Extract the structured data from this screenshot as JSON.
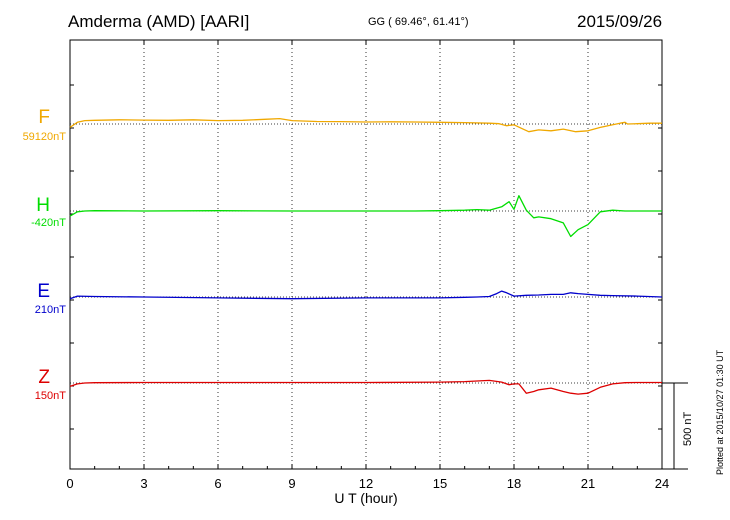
{
  "header": {
    "station": "Amderma (AMD)  [AARI]",
    "coords": "GG ( 69.46°,  61.41°)",
    "date": "2015/09/26"
  },
  "footer": {
    "plotted": "Plotted at 2015/10/27 01:30 UT",
    "scale_label": "500 nT"
  },
  "chart_data": {
    "type": "line",
    "xlabel": "U T (hour)",
    "xlim": [
      0,
      24
    ],
    "xticks": [
      0,
      3,
      6,
      9,
      12,
      15,
      18,
      21,
      24
    ],
    "grid": "dotted vertical every 3 hours, dotted baseline per trace",
    "scale_bar_nT": 500,
    "series": [
      {
        "name": "F",
        "baseline_label": "59120nT",
        "color": "#f0a800",
        "x": [
          0,
          0.3,
          0.6,
          1,
          2,
          3,
          4,
          5,
          6,
          7,
          8,
          8.5,
          9,
          10,
          11,
          12,
          13,
          14,
          15,
          16,
          17,
          17.4,
          17.7,
          18,
          18.3,
          18.6,
          19,
          19.5,
          20,
          20.5,
          21,
          21.5,
          22,
          22.3,
          22.5,
          22.6,
          23,
          23.5,
          24
        ],
        "y": [
          -20,
          10,
          20,
          22,
          25,
          23,
          22,
          25,
          20,
          22,
          28,
          32,
          20,
          15,
          14,
          12,
          13,
          12,
          10,
          8,
          5,
          2,
          -10,
          -5,
          -25,
          -45,
          -35,
          -40,
          -30,
          -45,
          -40,
          -20,
          -5,
          5,
          10,
          0,
          2,
          5,
          5
        ]
      },
      {
        "name": "H",
        "baseline_label": "-420nT",
        "color": "#00dd00",
        "x": [
          0,
          0.3,
          0.6,
          1,
          3,
          6,
          9,
          12,
          14,
          15,
          16,
          16.5,
          17,
          17.5,
          17.8,
          18,
          18.2,
          18.5,
          18.8,
          19,
          19.5,
          20,
          20.3,
          20.6,
          21,
          21.5,
          22,
          22.5,
          23,
          24
        ],
        "y": [
          -30,
          -5,
          0,
          2,
          0,
          2,
          0,
          0,
          0,
          2,
          5,
          8,
          5,
          25,
          55,
          10,
          90,
          5,
          -40,
          -35,
          -45,
          -70,
          -150,
          -110,
          -80,
          -5,
          5,
          0,
          0,
          0
        ]
      },
      {
        "name": "E",
        "baseline_label": "210nT",
        "color": "#0000cc",
        "x": [
          0,
          0.3,
          1,
          3,
          6,
          9,
          12,
          15,
          16,
          16.5,
          17,
          17.3,
          17.5,
          17.7,
          18,
          18.5,
          19,
          19.5,
          20,
          20.3,
          20.6,
          21,
          21.5,
          22,
          23,
          24
        ],
        "y": [
          -10,
          5,
          3,
          0,
          -5,
          -10,
          -5,
          -5,
          -2,
          0,
          3,
          20,
          35,
          25,
          5,
          10,
          12,
          15,
          15,
          25,
          20,
          15,
          10,
          8,
          5,
          0
        ]
      },
      {
        "name": "Z",
        "baseline_label": "150nT",
        "color": "#dd0000",
        "x": [
          0,
          0.3,
          0.6,
          1,
          3,
          6,
          9,
          12,
          15,
          16,
          16.5,
          17,
          17.5,
          17.8,
          18,
          18.2,
          18.5,
          18.8,
          19,
          19.5,
          20,
          20.3,
          20.6,
          21,
          21.5,
          22,
          22.5,
          23,
          24
        ],
        "y": [
          -20,
          -5,
          0,
          2,
          3,
          3,
          3,
          3,
          5,
          8,
          12,
          15,
          5,
          -10,
          -5,
          -5,
          -60,
          -50,
          -40,
          -30,
          -50,
          -60,
          -65,
          -60,
          -25,
          -5,
          2,
          3,
          3
        ]
      }
    ]
  }
}
